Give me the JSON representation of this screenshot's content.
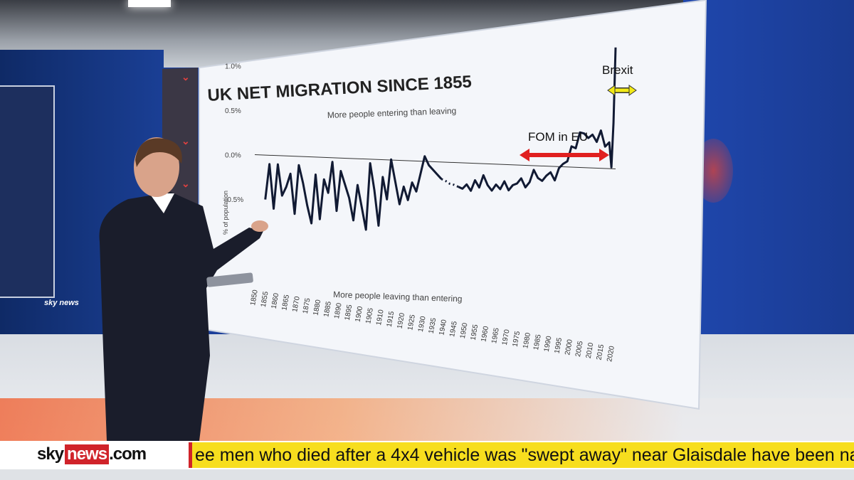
{
  "chart_data": {
    "type": "line",
    "title": "UK NET MIGRATION SINCE 1855",
    "subtitle": "More people entering than leaving",
    "bottom_caption": "More people leaving than entering",
    "ylabel": "% of population",
    "yticks": [
      "1.0%",
      "0.5%",
      "0.0%",
      "-0.5%"
    ],
    "ylim": [
      -0.9,
      1.3
    ],
    "xticks": [
      "1850",
      "1855",
      "1860",
      "1865",
      "1870",
      "1875",
      "1880",
      "1885",
      "1890",
      "1895",
      "1900",
      "1905",
      "1910",
      "1915",
      "1920",
      "1925",
      "1930",
      "1935",
      "1940",
      "1945",
      "1950",
      "1955",
      "1960",
      "1965",
      "1970",
      "1975",
      "1980",
      "1985",
      "1990",
      "1995",
      "2000",
      "2005",
      "2010",
      "2015",
      "2020"
    ],
    "series": [
      {
        "x": [
          1855,
          1857,
          1859,
          1861,
          1863,
          1865,
          1867,
          1869,
          1871,
          1873,
          1875,
          1877,
          1879,
          1881,
          1883,
          1885,
          1887,
          1889,
          1891,
          1893,
          1895,
          1897,
          1899,
          1901,
          1903,
          1905,
          1907,
          1909,
          1911,
          1913,
          1915,
          1917,
          1919,
          1921,
          1923,
          1925,
          1927,
          1929,
          1931,
          1933,
          1935,
          1937,
          1939
        ],
        "y": [
          -0.5,
          -0.1,
          -0.6,
          -0.1,
          -0.45,
          -0.35,
          -0.2,
          -0.65,
          -0.1,
          -0.3,
          -0.55,
          -0.75,
          -0.2,
          -0.7,
          -0.25,
          -0.4,
          -0.05,
          -0.6,
          -0.15,
          -0.3,
          -0.45,
          -0.7,
          -0.3,
          -0.55,
          -0.8,
          -0.05,
          -0.35,
          -0.75,
          -0.2,
          -0.45,
          0.0,
          -0.25,
          -0.5,
          -0.3,
          -0.45,
          -0.25,
          -0.35,
          -0.15,
          0.05,
          -0.05,
          -0.1,
          -0.15,
          -0.2
        ]
      },
      {
        "style": "dotted",
        "x": [
          1939,
          1941,
          1943,
          1945,
          1947
        ],
        "y": [
          -0.2,
          -0.22,
          -0.25,
          -0.26,
          -0.28
        ]
      },
      {
        "x": [
          1947,
          1949,
          1951,
          1953,
          1955,
          1957,
          1959,
          1961,
          1963,
          1965,
          1967,
          1969,
          1971,
          1973,
          1975,
          1977,
          1979,
          1981,
          1983,
          1985,
          1987,
          1989,
          1991,
          1993,
          1995,
          1997,
          1999,
          2001,
          2003,
          2005,
          2007,
          2009,
          2011,
          2013,
          2015,
          2017,
          2019,
          2020,
          2021,
          2022
        ],
        "y": [
          -0.28,
          -0.3,
          -0.25,
          -0.32,
          -0.2,
          -0.28,
          -0.14,
          -0.25,
          -0.31,
          -0.24,
          -0.29,
          -0.2,
          -0.3,
          -0.24,
          -0.22,
          -0.16,
          -0.26,
          -0.2,
          -0.06,
          -0.15,
          -0.18,
          -0.12,
          -0.08,
          -0.17,
          -0.03,
          0.02,
          0.05,
          0.22,
          0.2,
          0.38,
          0.37,
          0.32,
          0.36,
          0.28,
          0.41,
          0.23,
          0.28,
          0.0,
          0.5,
          1.35
        ]
      }
    ],
    "annotations": [
      {
        "label": "FOM in EU",
        "color": "#e02020"
      },
      {
        "label": "Brexit",
        "color": "#f2ea16"
      }
    ]
  },
  "ticker": {
    "logo_sky": "sky",
    "logo_news": "news",
    "logo_com": ".com",
    "headline": "ee men who died after a 4x4 vehicle was \"swept away\" near Glaisdale have been named a"
  },
  "studio": {
    "left_logo": "sky news"
  },
  "colors": {
    "line": "#111a33",
    "fom_arrow": "#e02020",
    "brexit_arrow": "#f2ea16",
    "sky_red": "#d0232a",
    "ticker_yellow": "#f7de1e"
  }
}
